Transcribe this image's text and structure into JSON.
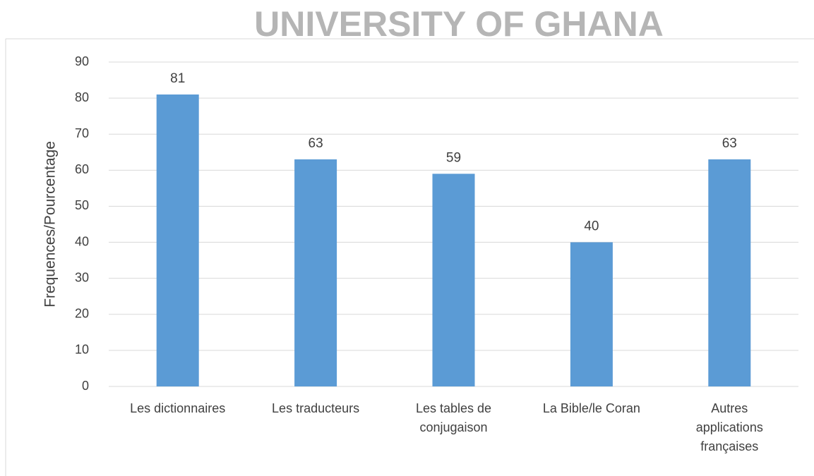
{
  "watermark": "UNIVERSITY OF GHANA",
  "chart_data": {
    "type": "bar",
    "y_label": "Frequences/Pourcentage",
    "categories": [
      "Les dictionnaires",
      "Les traducteurs",
      "Les tables de conjugaison",
      "La Bible/le Coran",
      "Autres applications françaises"
    ],
    "values": [
      81,
      63,
      59,
      40,
      63
    ],
    "color": "#5b9bd5",
    "ylim": [
      0,
      90
    ],
    "yticks": [
      0,
      10,
      20,
      30,
      40,
      50,
      60,
      70,
      80,
      90
    ],
    "grid": true
  }
}
